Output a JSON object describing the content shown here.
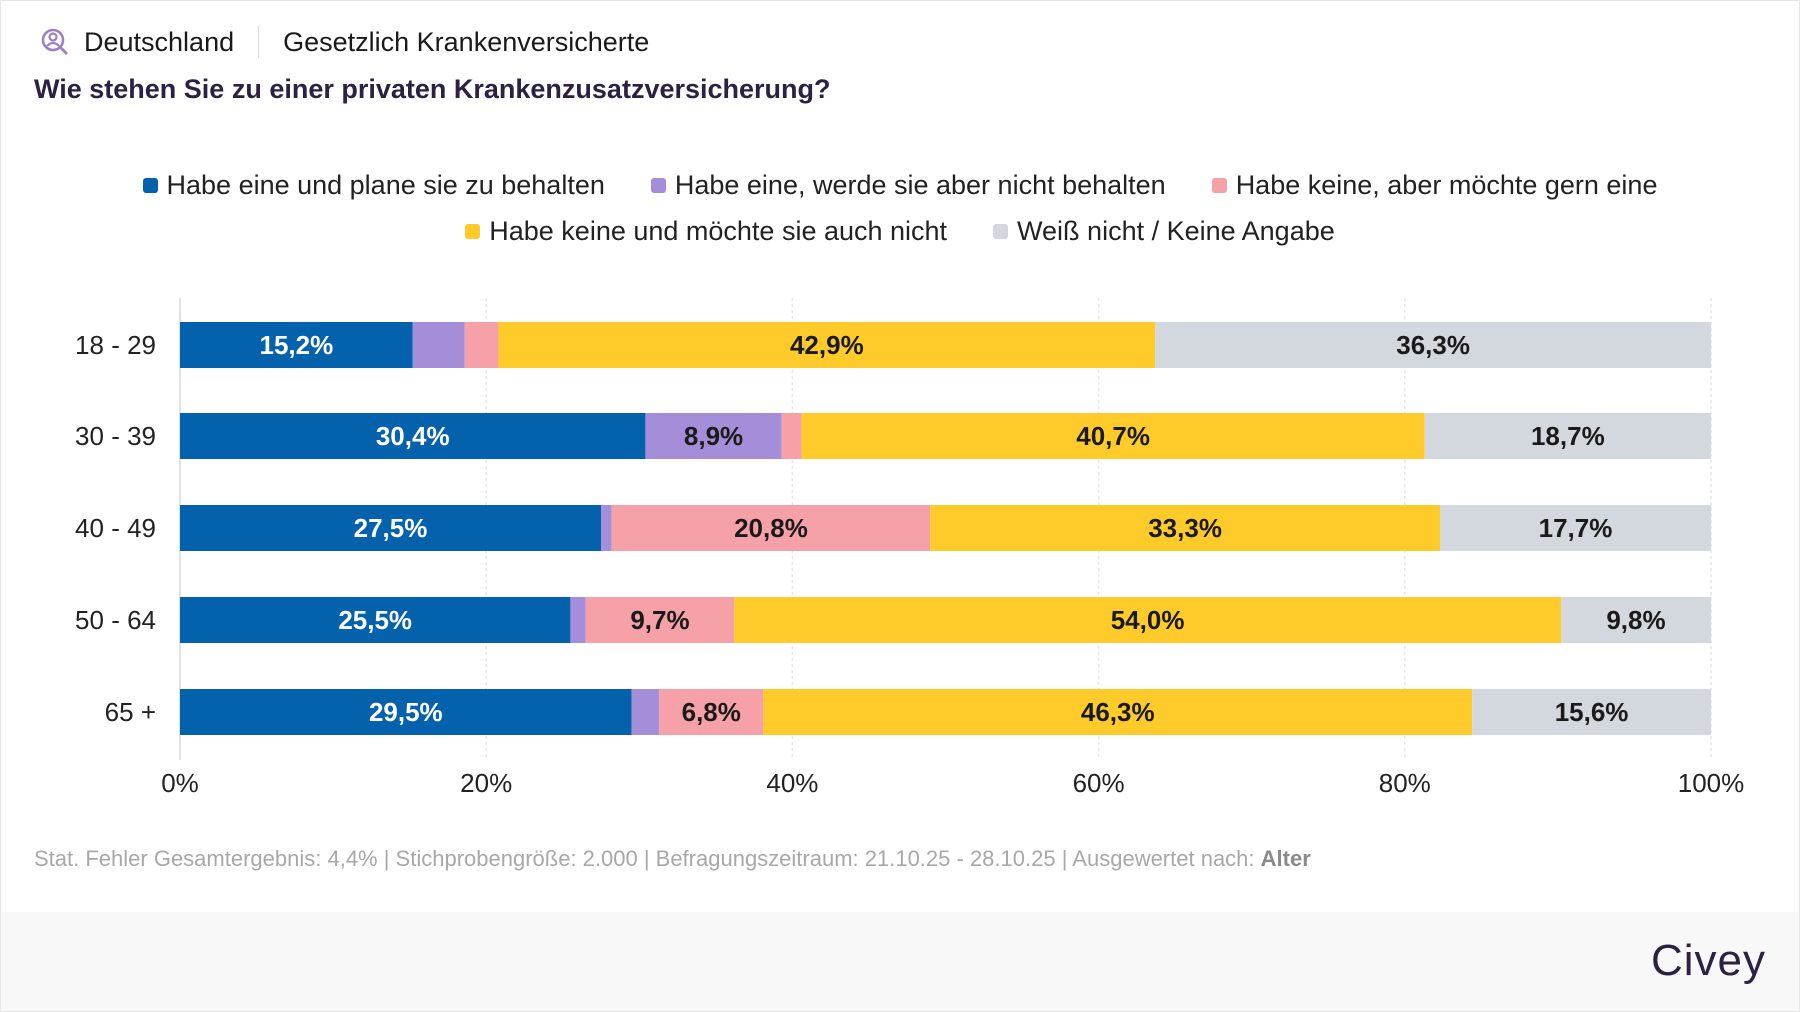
{
  "header": {
    "region": "Deutschland",
    "population": "Gesetzlich Krankenversicherte",
    "region_icon": "user-search-icon"
  },
  "question": "Wie stehen Sie zu einer privaten Krankenzusatzversicherung?",
  "footer": {
    "text": "Stat. Fehler Gesamtergebnis: 4,4% | Stichprobengröße: 2.000 | Befragungszeitraum: 21.10.25 - 28.10.25 | Ausgewertet nach: ",
    "grouping": "Alter"
  },
  "logo": "Civey",
  "chart_data": {
    "type": "bar",
    "orientation": "horizontal",
    "stacked": true,
    "categories": [
      "18 - 29",
      "30 - 39",
      "40 - 49",
      "50 - 64",
      "65 +"
    ],
    "series": [
      {
        "name": "Habe eine und plane sie zu behalten",
        "color": "#0461ab",
        "values": [
          15.2,
          30.4,
          27.5,
          25.5,
          29.5
        ]
      },
      {
        "name": "Habe eine, werde sie aber nicht behalten",
        "color": "#a58ed9",
        "values": [
          3.4,
          8.9,
          0.7,
          1.0,
          1.8
        ]
      },
      {
        "name": "Habe keine, aber möchte gern eine",
        "color": "#f6a1a7",
        "values": [
          2.2,
          1.3,
          20.8,
          9.7,
          6.8
        ]
      },
      {
        "name": "Habe keine und möchte sie auch nicht",
        "color": "#ffcb2a",
        "values": [
          42.9,
          40.7,
          33.3,
          54.0,
          46.3
        ]
      },
      {
        "name": "Weiß nicht / Keine Angabe",
        "color": "#d2d8de",
        "values": [
          36.3,
          18.7,
          17.7,
          9.8,
          15.6
        ]
      }
    ],
    "xlim": [
      0,
      100
    ],
    "xticks": [
      "0%",
      "20%",
      "40%",
      "60%",
      "80%",
      "100%"
    ],
    "grid": true,
    "legend": "top",
    "labels": [
      [
        "15,2%",
        null,
        null,
        "42,9%",
        "36,3%"
      ],
      [
        "30,4%",
        "8,9%",
        null,
        "40,7%",
        "18,7%"
      ],
      [
        "27,5%",
        null,
        "20,8%",
        "33,3%",
        "17,7%"
      ],
      [
        "25,5%",
        null,
        "9,7%",
        "54,0%",
        "9,8%"
      ],
      [
        "29,5%",
        null,
        "6,8%",
        "46,3%",
        "15,6%"
      ]
    ]
  }
}
